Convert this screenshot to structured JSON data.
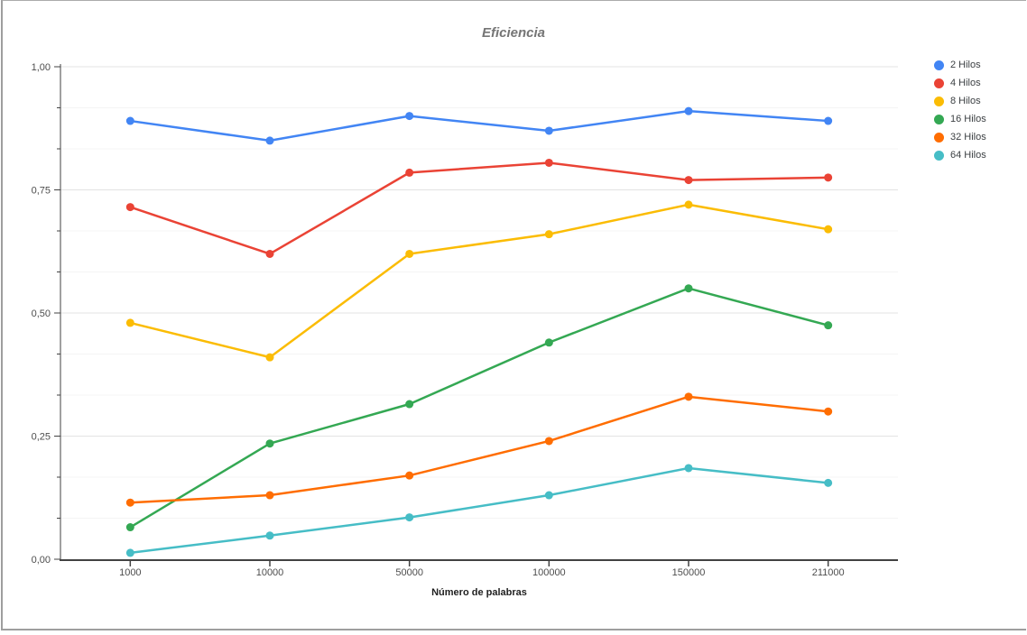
{
  "window": {
    "background": "#ffffff",
    "border_color": "#9e9e9e"
  },
  "chart_data": {
    "type": "line",
    "title": "Eficiencia",
    "title_color": "#757575",
    "xlabel": "Número de palabras",
    "ylabel": "",
    "categories": [
      "1000",
      "10000",
      "50000",
      "100000",
      "150000",
      "211000"
    ],
    "ylim": [
      0,
      1
    ],
    "y_ticks": [
      {
        "label": "1,00",
        "value": 1.0
      },
      {
        "label": "0,75",
        "value": 0.75
      },
      {
        "label": "0,50",
        "value": 0.5
      },
      {
        "label": "0,25",
        "value": 0.25
      },
      {
        "label": "0,00",
        "value": 0.0
      }
    ],
    "y_divisions": 12,
    "y_major_every": 3,
    "grid": "horizontal major + minor",
    "legend_position": "right",
    "axis_color": "#424242",
    "major_grid_color": "#e3e3e3",
    "minor_grid_color": "#f4f4f4",
    "tick_label_color": "#4d4d4d",
    "series": [
      {
        "name": "2 Hilos",
        "color": "#4285F4",
        "values": [
          0.89,
          0.85,
          0.9,
          0.87,
          0.91,
          0.89
        ]
      },
      {
        "name": "4 Hilos",
        "color": "#EA4335",
        "values": [
          0.715,
          0.62,
          0.785,
          0.805,
          0.77,
          0.775
        ]
      },
      {
        "name": "8 Hilos",
        "color": "#FBBC04",
        "values": [
          0.48,
          0.41,
          0.62,
          0.66,
          0.72,
          0.67
        ]
      },
      {
        "name": "16 Hilos",
        "color": "#34A853",
        "values": [
          0.065,
          0.235,
          0.315,
          0.44,
          0.55,
          0.475
        ]
      },
      {
        "name": "32 Hilos",
        "color": "#FF6D01",
        "values": [
          0.115,
          0.13,
          0.17,
          0.24,
          0.33,
          0.3
        ]
      },
      {
        "name": "64 Hilos",
        "color": "#46BDC6",
        "values": [
          0.013,
          0.048,
          0.085,
          0.13,
          0.185,
          0.155
        ]
      }
    ]
  }
}
